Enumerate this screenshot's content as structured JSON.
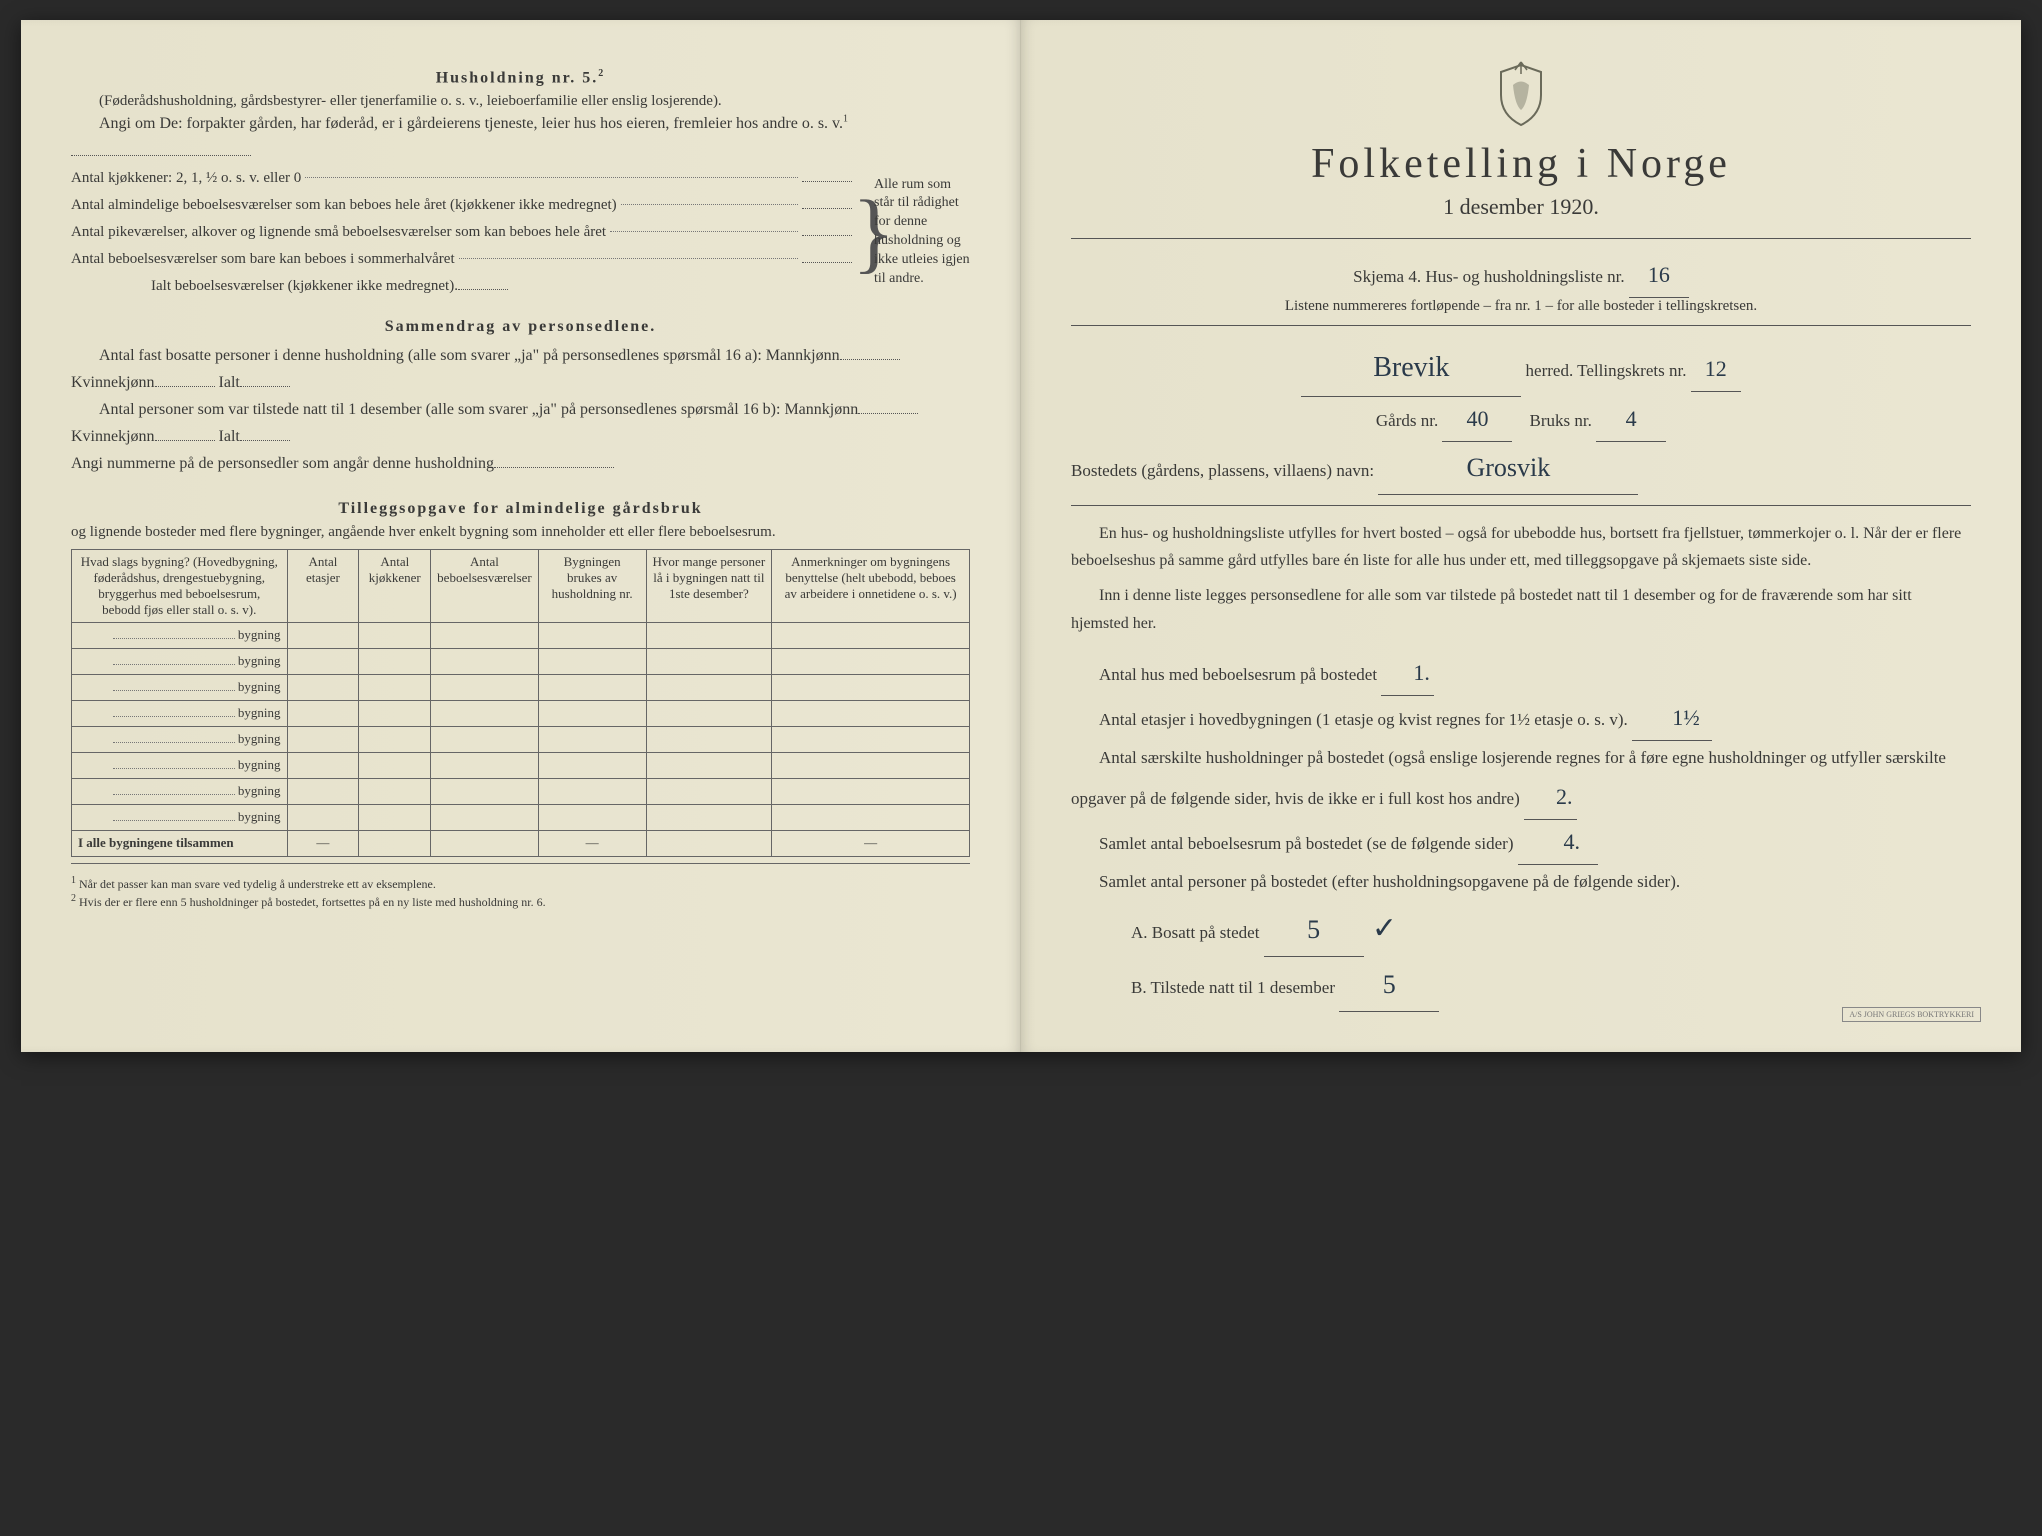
{
  "left": {
    "husholdning_title": "Husholdning nr. 5.",
    "husholdning_sup": "2",
    "parenthetical": "(Føderådshusholdning, gårdsbestyrer- eller tjenerfamilie o. s. v., leieboerfamilie eller enslig losjerende).",
    "angi_intro": "Angi om De:  forpakter gården, har føderåd, er i gårdeierens tjeneste, leier hus hos eieren, fremleier hos andre o. s. v.",
    "sup1": "1",
    "kjokkener_label": "Antal kjøkkener: 2, 1, ½ o. s. v. eller 0",
    "alm_label": "Antal almindelige beboelsesværelser som kan beboes hele året (kjøkkener ikke medregnet)",
    "pike_label": "Antal pikeværelser, alkover og lignende små beboelsesværelser som kan beboes hele året",
    "sommer_label": "Antal beboelsesværelser som bare kan beboes i sommerhalvåret",
    "ialt_label": "Ialt beboelsesværelser (kjøkkener ikke medregnet).",
    "brace_text": "Alle rum som står til rådighet for denne husholdning og ikke utleies igjen til andre.",
    "sammendrag_title": "Sammendrag av personsedlene.",
    "fast_bosatte": "Antal fast bosatte personer i denne husholdning (alle som svarer „ja\" på personsedlenes spørsmål 16 a): Mannkjønn",
    "kvinnekjonn": "Kvinnekjønn",
    "ialt": "Ialt",
    "tilstede": "Antal personer som var tilstede natt til 1 desember (alle som svarer „ja\" på personsedlenes spørsmål 16 b): Mannkjønn",
    "angi_nummerne": "Angi nummerne på de personsedler som angår denne husholdning",
    "tillegg_title": "Tilleggsopgave for almindelige gårdsbruk",
    "tillegg_sub": "og lignende bosteder med flere bygninger, angående hver enkelt bygning som inneholder ett eller flere beboelsesrum.",
    "table": {
      "headers": [
        "Hvad slags bygning?\n(Hovedbygning, føderådshus, drengestuebygning, bryggerhus med beboelsesrum, bebodd fjøs eller stall o. s. v).",
        "Antal etasjer",
        "Antal kjøkkener",
        "Antal beboelsesværelser",
        "Bygningen brukes av husholdning nr.",
        "Hvor mange personer lå i bygningen natt til 1ste desember?",
        "Anmerkninger om bygningens benyttelse (helt ubebodd, beboes av arbeidere i onnetidene o. s. v.)"
      ],
      "row_label": "bygning",
      "row_count": 8,
      "footer": "I alle bygningene tilsammen",
      "dash": "—"
    },
    "footnote1": "Når det passer kan man svare ved tydelig å understreke ett av eksemplene.",
    "footnote2": "Hvis der er flere enn 5 husholdninger på bostedet, fortsettes på en ny liste med husholdning nr. 6."
  },
  "right": {
    "title": "Folketelling i Norge",
    "date": "1 desember 1920.",
    "skjema_label": "Skjema 4.  Hus- og husholdningsliste nr.",
    "skjema_nr": "16",
    "listene": "Listene nummereres fortløpende – fra nr. 1 – for alle bosteder i tellingskretsen.",
    "herred_val": "Brevik",
    "herred_label": "herred.   Tellingskrets nr.",
    "krets_nr": "12",
    "gards_label": "Gårds nr.",
    "gards_nr": "40",
    "bruks_label": "Bruks nr.",
    "bruks_nr": "4",
    "bosted_label": "Bostedets (gårdens, plassens, villaens) navn:",
    "bosted_val": "Grosvik",
    "para1": "En hus- og husholdningsliste utfylles for hvert bosted – også for ubebodde hus, bortsett fra fjellstuer, tømmerkojer o. l.  Når der er flere beboelseshus på samme gård utfylles bare én liste for alle hus under ett, med tilleggsopgave på skjemaets siste side.",
    "para2": "Inn i denne liste legges personsedlene for alle som var tilstede på bostedet natt til 1 desember og for de fraværende som har sitt hjemsted her.",
    "antal_hus_label": "Antal hus med beboelsesrum på bostedet",
    "antal_hus_val": "1.",
    "etasjer_label": "Antal etasjer i hovedbygningen (1 etasje og kvist regnes for 1½ etasje o. s. v).",
    "etasjer_val": "1½",
    "hushold_label": "Antal særskilte husholdninger på bostedet (også enslige losjerende regnes for å føre egne husholdninger og utfyller særskilte opgaver på de følgende sider, hvis de ikke er i full kost hos andre)",
    "hushold_val": "2.",
    "samlet_rum_label": "Samlet antal beboelsesrum på bostedet (se de følgende sider)",
    "samlet_rum_val": "4.",
    "samlet_pers_label": "Samlet antal personer på bostedet (efter husholdningsopgavene på de følgende sider).",
    "bosatt_label": "A.  Bosatt på stedet",
    "bosatt_val": "5",
    "tilstede_label": "B.  Tilstede natt til 1 desember",
    "tilstede_val": "5",
    "stamp": "A/S JOHN GRIEGS BOKTRYKKERI"
  },
  "colors": {
    "paper": "#e8e4d0",
    "ink": "#3a3a38",
    "handwriting": "#2a3a4a"
  }
}
